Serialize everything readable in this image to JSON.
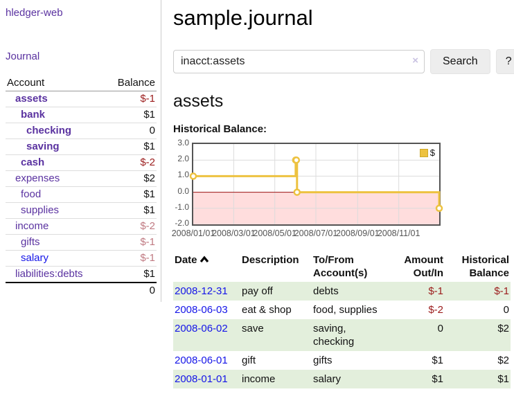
{
  "app": {
    "title": "hledger-web"
  },
  "colors": {
    "accent_purple": "#5a32a0",
    "link_blue": "#1414e8",
    "negative_strong": "#9b1c1c",
    "negative_weak": "#c07a82",
    "row_green": "#e3efdc",
    "chart_line": "#edc240",
    "chart_negative_fill": "#ffdddd",
    "chart_zero_line": "#991111",
    "chart_border": "#545454"
  },
  "sidebar": {
    "journal_link": "Journal",
    "accounts_table": {
      "headers": {
        "account": "Account",
        "balance": "Balance"
      },
      "rows": [
        {
          "name": "assets",
          "indent": 1,
          "bold": true,
          "balance": "$-1",
          "balance_class": "neg-strong",
          "link": "purple"
        },
        {
          "name": "bank",
          "indent": 2,
          "bold": true,
          "balance": "$1",
          "balance_class": "",
          "link": "purple"
        },
        {
          "name": "checking",
          "indent": 3,
          "bold": true,
          "balance": "0",
          "balance_class": "",
          "link": "purple"
        },
        {
          "name": "saving",
          "indent": 3,
          "bold": true,
          "balance": "$1",
          "balance_class": "",
          "link": "purple"
        },
        {
          "name": "cash",
          "indent": 2,
          "bold": true,
          "balance": "$-2",
          "balance_class": "neg-strong",
          "link": "purple"
        },
        {
          "name": "expenses",
          "indent": 1,
          "bold": false,
          "balance": "$2",
          "balance_class": "",
          "link": "purple"
        },
        {
          "name": "food",
          "indent": 2,
          "bold": false,
          "balance": "$1",
          "balance_class": "",
          "link": "purple"
        },
        {
          "name": "supplies",
          "indent": 2,
          "bold": false,
          "balance": "$1",
          "balance_class": "",
          "link": "purple"
        },
        {
          "name": "income",
          "indent": 1,
          "bold": false,
          "balance": "$-2",
          "balance_class": "neg-weak",
          "link": "purple"
        },
        {
          "name": "gifts",
          "indent": 2,
          "bold": false,
          "balance": "$-1",
          "balance_class": "neg-weak",
          "link": "purple"
        },
        {
          "name": "salary",
          "indent": 2,
          "bold": false,
          "balance": "$-1",
          "balance_class": "neg-weak",
          "link": "blue"
        },
        {
          "name": "liabilities:debts",
          "indent": 1,
          "bold": false,
          "balance": "$1",
          "balance_class": "",
          "link": "purple"
        }
      ],
      "total": "0"
    }
  },
  "main": {
    "title": "sample.journal",
    "search": {
      "value": "inacct:assets",
      "clear_icon": "×",
      "search_button": "Search",
      "help_button": "?"
    },
    "account_heading": "assets"
  },
  "chart_data": {
    "type": "line",
    "step": true,
    "title": "Historical Balance:",
    "legend": {
      "label": "$",
      "position": "top-right"
    },
    "x_range": [
      "2008-01-01",
      "2008-12-31"
    ],
    "ylim": [
      -2,
      3
    ],
    "y_ticks": [
      "3.0",
      "2.0",
      "1.0",
      "0.0",
      "-1.0",
      "-2.0"
    ],
    "x_ticks": [
      "2008/01/01",
      "2008/03/01",
      "2008/05/01",
      "2008/07/01",
      "2008/09/01",
      "2008/11/01"
    ],
    "series": [
      {
        "name": "$",
        "points": [
          {
            "date": "2008-01-01",
            "value": 1
          },
          {
            "date": "2008-06-01",
            "value": 2
          },
          {
            "date": "2008-06-02",
            "value": 2
          },
          {
            "date": "2008-06-03",
            "value": 0
          },
          {
            "date": "2008-12-31",
            "value": -1
          }
        ]
      }
    ],
    "negative_region": true
  },
  "register": {
    "headers": [
      {
        "label": "Date",
        "sort": "asc",
        "align": "left"
      },
      {
        "label": "Description",
        "align": "left"
      },
      {
        "label": "To/From Account(s)",
        "align": "left"
      },
      {
        "label": "Amount Out/In",
        "align": "right"
      },
      {
        "label": "Historical Balance",
        "align": "right"
      }
    ],
    "rows": [
      {
        "date": "2008-12-31",
        "description": "pay off",
        "accounts": "debts",
        "amount": "$-1",
        "balance": "$-1"
      },
      {
        "date": "2008-06-03",
        "description": "eat & shop",
        "accounts": "food, supplies",
        "amount": "$-2",
        "balance": "0"
      },
      {
        "date": "2008-06-02",
        "description": "save",
        "accounts": "saving, checking",
        "amount": "0",
        "balance": "$2"
      },
      {
        "date": "2008-06-01",
        "description": "gift",
        "accounts": "gifts",
        "amount": "$1",
        "balance": "$2"
      },
      {
        "date": "2008-01-01",
        "description": "income",
        "accounts": "salary",
        "amount": "$1",
        "balance": "$1"
      }
    ]
  }
}
